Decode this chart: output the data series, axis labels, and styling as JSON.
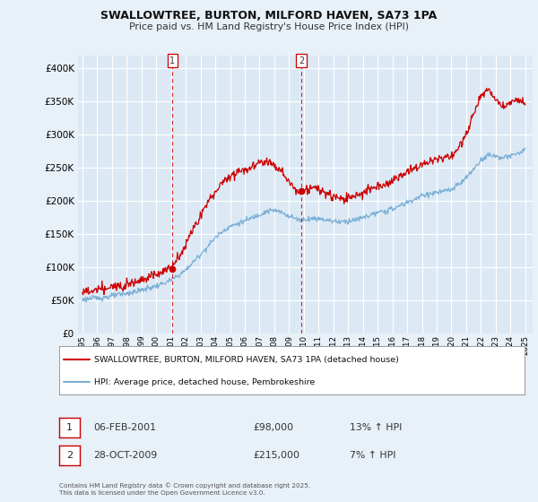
{
  "title": "SWALLOWTREE, BURTON, MILFORD HAVEN, SA73 1PA",
  "subtitle": "Price paid vs. HM Land Registry's House Price Index (HPI)",
  "background_color": "#e8f0f8",
  "plot_bg_color": "#dce9f5",
  "grid_color": "#ffffff",
  "ylim": [
    0,
    420000
  ],
  "yticks": [
    0,
    50000,
    100000,
    150000,
    200000,
    250000,
    300000,
    350000,
    400000
  ],
  "legend_label_red": "SWALLOWTREE, BURTON, MILFORD HAVEN, SA73 1PA (detached house)",
  "legend_label_blue": "HPI: Average price, detached house, Pembrokeshire",
  "footer": "Contains HM Land Registry data © Crown copyright and database right 2025.\nThis data is licensed under the Open Government Licence v3.0.",
  "annotation1_date": "06-FEB-2001",
  "annotation1_price": "£98,000",
  "annotation1_hpi": "13% ↑ HPI",
  "annotation2_date": "28-OCT-2009",
  "annotation2_price": "£215,000",
  "annotation2_hpi": "7% ↑ HPI",
  "red_color": "#cc0000",
  "blue_color": "#7bafd4",
  "hpi_x": [
    1995.0,
    1995.5,
    1996.0,
    1996.5,
    1997.0,
    1997.5,
    1998.0,
    1998.5,
    1999.0,
    1999.5,
    2000.0,
    2000.5,
    2001.0,
    2001.5,
    2002.0,
    2002.5,
    2003.0,
    2003.5,
    2004.0,
    2004.5,
    2005.0,
    2005.5,
    2006.0,
    2006.5,
    2007.0,
    2007.5,
    2008.0,
    2008.5,
    2009.0,
    2009.5,
    2010.0,
    2010.5,
    2011.0,
    2011.5,
    2012.0,
    2012.5,
    2013.0,
    2013.5,
    2014.0,
    2014.5,
    2015.0,
    2015.5,
    2016.0,
    2016.5,
    2017.0,
    2017.5,
    2018.0,
    2018.5,
    2019.0,
    2019.5,
    2020.0,
    2020.5,
    2021.0,
    2021.5,
    2022.0,
    2022.5,
    2023.0,
    2023.5,
    2024.0,
    2024.5,
    2025.0
  ],
  "hpi_y": [
    52000,
    53000,
    54000,
    55000,
    57000,
    59000,
    61000,
    63000,
    66000,
    69000,
    72000,
    76000,
    81000,
    88000,
    96000,
    108000,
    120000,
    132000,
    145000,
    155000,
    162000,
    166000,
    170000,
    175000,
    180000,
    185000,
    186000,
    183000,
    178000,
    173000,
    172000,
    174000,
    174000,
    172000,
    170000,
    169000,
    170000,
    172000,
    175000,
    179000,
    182000,
    185000,
    188000,
    193000,
    198000,
    203000,
    208000,
    211000,
    213000,
    215000,
    217000,
    225000,
    235000,
    248000,
    262000,
    270000,
    268000,
    265000,
    268000,
    272000,
    278000
  ],
  "red_x": [
    1995.0,
    1995.5,
    1996.0,
    1996.5,
    1997.0,
    1997.5,
    1998.0,
    1998.5,
    1999.0,
    1999.5,
    2000.0,
    2000.5,
    2001.0,
    2001.5,
    2002.0,
    2002.5,
    2003.0,
    2003.5,
    2004.0,
    2004.5,
    2005.0,
    2005.5,
    2006.0,
    2006.5,
    2007.0,
    2007.5,
    2008.0,
    2008.5,
    2009.0,
    2009.5,
    2010.0,
    2010.5,
    2011.0,
    2011.5,
    2012.0,
    2012.5,
    2013.0,
    2013.5,
    2014.0,
    2014.5,
    2015.0,
    2015.5,
    2016.0,
    2016.5,
    2017.0,
    2017.5,
    2018.0,
    2018.5,
    2019.0,
    2019.5,
    2020.0,
    2020.5,
    2021.0,
    2021.5,
    2022.0,
    2022.5,
    2023.0,
    2023.5,
    2024.0,
    2024.5,
    2025.0
  ],
  "red_y": [
    62000,
    64000,
    66000,
    68000,
    70000,
    73000,
    76000,
    79000,
    82000,
    86000,
    90000,
    95000,
    100000,
    115000,
    135000,
    158000,
    178000,
    198000,
    215000,
    228000,
    238000,
    245000,
    248000,
    252000,
    258000,
    262000,
    255000,
    245000,
    228000,
    215000,
    215000,
    220000,
    218000,
    212000,
    206000,
    203000,
    205000,
    208000,
    212000,
    218000,
    222000,
    226000,
    230000,
    237000,
    244000,
    250000,
    255000,
    260000,
    263000,
    265000,
    268000,
    280000,
    302000,
    330000,
    358000,
    368000,
    355000,
    342000,
    348000,
    355000,
    345000
  ],
  "marker1_x": 2001.1,
  "marker1_y": 98000,
  "marker2_x": 2009.8,
  "marker2_y": 215000,
  "vline1_x": 2001.1,
  "vline2_x": 2009.83,
  "xlim_min": 1994.7,
  "xlim_max": 2025.5
}
